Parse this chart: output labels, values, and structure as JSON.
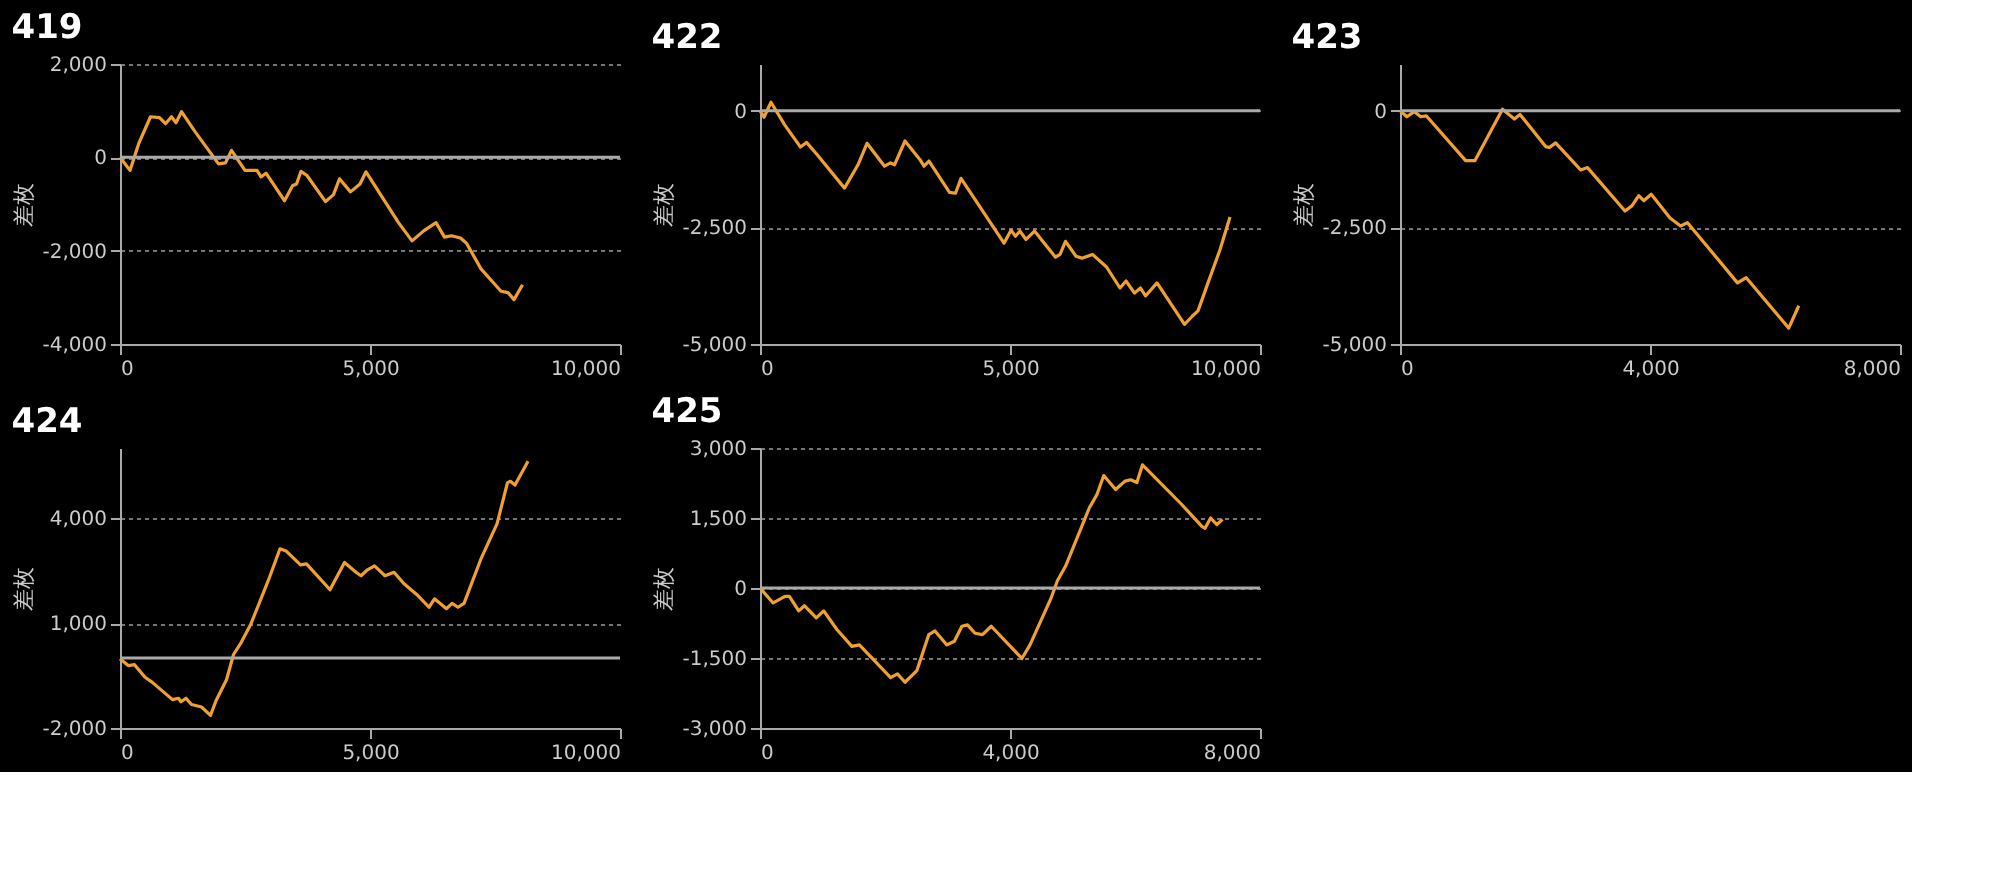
{
  "chart_data": [
    {
      "type": "line",
      "title": "419",
      "ylabel": "差枚",
      "xlim": [
        0,
        10000
      ],
      "xticks": [
        0,
        {
          "value": 5000,
          "label": "5,000"
        },
        {
          "value": 10000,
          "label": "10,000"
        }
      ],
      "ylim": [
        -4000,
        2000
      ],
      "yticks": [
        {
          "value": -4000,
          "label": "-4,000"
        },
        {
          "value": -2000,
          "label": "-2,000"
        },
        0,
        {
          "value": 2000,
          "label": "2,000"
        }
      ],
      "grid": "y",
      "ref_lines": [
        {
          "axis": "y",
          "value": 0,
          "color": "#aaaaaa"
        }
      ],
      "x": [
        0,
        200,
        380,
        610,
        790,
        910,
        1030,
        1120,
        1230,
        1500,
        1970,
        2110,
        2230,
        2500,
        2740,
        2820,
        2920,
        3290,
        3450,
        3530,
        3620,
        3740,
        4110,
        4270,
        4390,
        4610,
        4800,
        4920,
        5570,
        5840,
        6080,
        6320,
        6490,
        6630,
        6810,
        6930,
        7220,
        7620,
        7760,
        7880,
        8050
      ],
      "series": [
        {
          "color": "#f0a030",
          "values": [
            0,
            -280,
            310,
            870,
            850,
            720,
            870,
            740,
            980,
            550,
            -140,
            -120,
            150,
            -280,
            -280,
            -420,
            -340,
            -930,
            -610,
            -570,
            -300,
            -390,
            -950,
            -800,
            -460,
            -740,
            -570,
            -310,
            -1400,
            -1790,
            -1570,
            -1400,
            -1710,
            -1680,
            -1730,
            -1840,
            -2390,
            -2870,
            -2900,
            -3050,
            -2730
          ]
        }
      ]
    },
    {
      "type": "line",
      "title": "422",
      "ylabel": "差枚",
      "xlim": [
        0,
        10000
      ],
      "xticks": [
        0,
        {
          "value": 5000,
          "label": "5,000"
        },
        {
          "value": 10000,
          "label": "10,000"
        }
      ],
      "ylim": [
        -5000,
        1000
      ],
      "yticks": [
        {
          "value": -5000,
          "label": "-5,000"
        },
        {
          "value": -2500,
          "label": "-2,500"
        },
        0
      ],
      "grid": "y",
      "ref_lines": [
        {
          "axis": "y",
          "value": 0,
          "color": "#aaaaaa"
        }
      ],
      "x": [
        0,
        80,
        220,
        490,
        810,
        930,
        1140,
        1690,
        1960,
        2140,
        2490,
        2610,
        2690,
        2900,
        3200,
        3280,
        3380,
        3790,
        3910,
        4020,
        4880,
        5020,
        5110,
        5200,
        5320,
        5490,
        5910,
        6000,
        6110,
        6320,
        6440,
        6650,
        6930,
        7200,
        7320,
        7490,
        7610,
        7710,
        7940,
        8490,
        8650,
        8760,
        8960,
        9200,
        9400
      ],
      "series": [
        {
          "color": "#f0a030",
          "values": [
            0,
            -140,
            180,
            -300,
            -780,
            -680,
            -940,
            -1660,
            -1160,
            -700,
            -1190,
            -1120,
            -1160,
            -650,
            -1050,
            -1190,
            -1080,
            -1750,
            -1770,
            -1450,
            -2840,
            -2560,
            -2690,
            -2580,
            -2760,
            -2580,
            -3140,
            -3080,
            -2800,
            -3120,
            -3160,
            -3080,
            -3350,
            -3800,
            -3650,
            -3910,
            -3800,
            -3970,
            -3690,
            -4580,
            -4400,
            -4290,
            -3690,
            -2980,
            -2280
          ]
        }
      ]
    },
    {
      "type": "line",
      "title": "423",
      "ylabel": "差枚",
      "xlim": [
        0,
        8000
      ],
      "xticks": [
        0,
        {
          "value": 4000,
          "label": "4,000"
        },
        {
          "value": 8000,
          "label": "8,000"
        }
      ],
      "ylim": [
        -5000,
        1000
      ],
      "yticks": [
        {
          "value": -5000,
          "label": "-5,000"
        },
        {
          "value": -2500,
          "label": "-2,500"
        },
        0
      ],
      "grid": "y",
      "ref_lines": [
        {
          "axis": "y",
          "value": 0,
          "color": "#aaaaaa"
        }
      ],
      "x": [
        0,
        110,
        230,
        330,
        420,
        1050,
        1200,
        1640,
        1830,
        1920,
        2330,
        2390,
        2490,
        2890,
        3000,
        3600,
        3710,
        3820,
        3900,
        4020,
        4320,
        4490,
        4600,
        5400,
        5540,
        6220,
        6380
      ],
      "series": [
        {
          "color": "#f0a030",
          "values": [
            0,
            -130,
            -20,
            -130,
            -110,
            -1070,
            -1070,
            30,
            -180,
            -80,
            -770,
            -790,
            -690,
            -1270,
            -1220,
            -2150,
            -2040,
            -1820,
            -1930,
            -1790,
            -2300,
            -2470,
            -2400,
            -3690,
            -3580,
            -4660,
            -4180
          ]
        }
      ]
    },
    {
      "type": "line",
      "title": "424",
      "ylabel": "差枚",
      "xlim": [
        0,
        10000
      ],
      "xticks": [
        0,
        {
          "value": 5000,
          "label": "5,000"
        },
        {
          "value": 10000,
          "label": "10,000"
        }
      ],
      "ylim": [
        -2000,
        6000
      ],
      "yticks": [
        {
          "value": -2000,
          "label": "-2,000"
        },
        {
          "value": 1000,
          "label": "1,000"
        },
        {
          "value": 4000,
          "label": "4,000"
        }
      ],
      "grid": "y",
      "ref_lines": [
        {
          "axis": "y",
          "value": 0,
          "color": "#aaaaaa"
        }
      ],
      "x": [
        0,
        170,
        290,
        500,
        640,
        1050,
        1170,
        1220,
        1320,
        1430,
        1630,
        1810,
        1920,
        2130,
        2270,
        2410,
        2620,
        2970,
        3200,
        3320,
        3610,
        3730,
        4200,
        4490,
        4720,
        4820,
        4950,
        5090,
        5300,
        5480,
        5680,
        5940,
        6180,
        6290,
        6530,
        6640,
        6760,
        6880,
        7230,
        7540,
        7750,
        7810,
        7900,
        8160
      ],
      "series": [
        {
          "color": "#f0a030",
          "values": [
            -20,
            -220,
            -190,
            -550,
            -690,
            -1190,
            -1150,
            -1250,
            -1150,
            -1330,
            -1400,
            -1640,
            -1220,
            -620,
            100,
            410,
            980,
            2230,
            3120,
            3060,
            2660,
            2690,
            1950,
            2730,
            2450,
            2350,
            2520,
            2630,
            2350,
            2450,
            2120,
            1810,
            1450,
            1690,
            1410,
            1560,
            1450,
            1560,
            2870,
            3830,
            5010,
            5050,
            4940,
            5620
          ]
        }
      ]
    },
    {
      "type": "line",
      "title": "425",
      "ylabel": "差枚",
      "xlim": [
        0,
        8000
      ],
      "xticks": [
        0,
        {
          "value": 4000,
          "label": "4,000"
        },
        {
          "value": 8000,
          "label": "8,000"
        }
      ],
      "ylim": [
        -3000,
        3000
      ],
      "yticks": [
        {
          "value": -3000,
          "label": "-3,000"
        },
        {
          "value": -1500,
          "label": "-1,500"
        },
        0,
        {
          "value": 1500,
          "label": "1,500"
        },
        {
          "value": 3000,
          "label": "3,000"
        }
      ],
      "grid": "y",
      "ref_lines": [
        {
          "axis": "y",
          "value": 0,
          "color": "#aaaaaa"
        }
      ],
      "x": [
        0,
        210,
        400,
        470,
        620,
        710,
        900,
        1020,
        1230,
        1470,
        1590,
        2090,
        2200,
        2320,
        2510,
        2700,
        2800,
        2990,
        3110,
        3230,
        3320,
        3440,
        3560,
        3700,
        4190,
        4320,
        4650,
        4760,
        4890,
        5270,
        5390,
        5500,
        5690,
        5840,
        5930,
        6030,
        6120,
        6740,
        7070,
        7120,
        7210,
        7310,
        7400
      ],
      "series": [
        {
          "color": "#f0a030",
          "values": [
            0,
            -320,
            -180,
            -180,
            -490,
            -380,
            -640,
            -490,
            -890,
            -1250,
            -1220,
            -1920,
            -1840,
            -2020,
            -1770,
            -1000,
            -920,
            -1220,
            -1140,
            -820,
            -790,
            -970,
            -1000,
            -820,
            -1510,
            -1220,
            -240,
            160,
            470,
            1720,
            2000,
            2410,
            2110,
            2290,
            2320,
            2260,
            2640,
            1800,
            1320,
            1280,
            1500,
            1360,
            1470
          ]
        }
      ]
    }
  ]
}
